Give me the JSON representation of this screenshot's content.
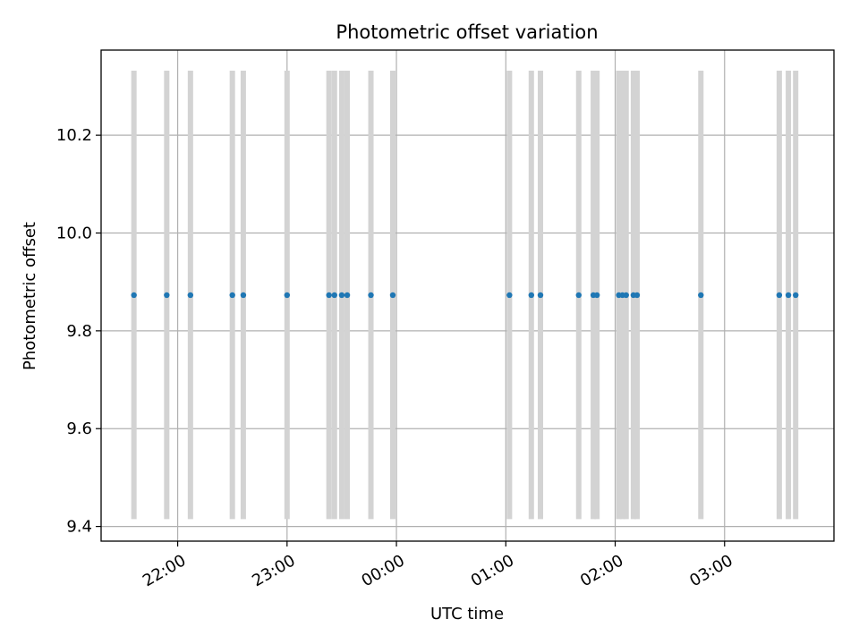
{
  "chart_data": {
    "type": "scatter",
    "title": "Photometric offset variation",
    "xlabel": "UTC time",
    "ylabel": "Photometric offset",
    "x_axis": {
      "type": "time",
      "range": [
        "21:18",
        "04:00"
      ],
      "tick_values": [
        "22:00",
        "23:00",
        "00:00",
        "01:00",
        "02:00",
        "03:00"
      ],
      "tick_labels": [
        "22:00",
        "23:00",
        "00:00",
        "01:00",
        "02:00",
        "03:00"
      ]
    },
    "y_axis": {
      "range": [
        9.37,
        10.374
      ],
      "tick_values": [
        9.4,
        9.6,
        9.8,
        10.0,
        10.2
      ],
      "tick_labels": [
        "9.4",
        "9.6",
        "9.8",
        "10.0",
        "10.2"
      ]
    },
    "grid": true,
    "series": [
      {
        "marker_color": "#1f77b4",
        "x": [
          "21:36",
          "21:54",
          "22:07",
          "22:30",
          "22:36",
          "23:00",
          "23:23",
          "23:26",
          "23:30",
          "23:33",
          "23:46",
          "23:58",
          "01:02",
          "01:14",
          "01:19",
          "01:40",
          "01:48",
          "01:50",
          "02:02",
          "02:04",
          "02:06",
          "02:10",
          "02:12",
          "02:47",
          "03:30",
          "03:35",
          "03:39"
        ],
        "y": [
          9.873,
          9.873,
          9.873,
          9.873,
          9.873,
          9.873,
          9.873,
          9.873,
          9.873,
          9.873,
          9.873,
          9.873,
          9.873,
          9.873,
          9.873,
          9.873,
          9.873,
          9.873,
          9.873,
          9.873,
          9.873,
          9.873,
          9.873,
          9.873,
          9.873,
          9.873,
          9.873
        ]
      }
    ],
    "vertical_bands": {
      "color": "#d3d3d3",
      "y_range": [
        9.415,
        10.332
      ],
      "x": [
        "21:36",
        "21:54",
        "22:07",
        "22:30",
        "22:36",
        "23:00",
        "23:23",
        "23:26",
        "23:30",
        "23:33",
        "23:46",
        "23:58",
        "01:02",
        "01:14",
        "01:19",
        "01:40",
        "01:48",
        "01:50",
        "02:02",
        "02:04",
        "02:06",
        "02:10",
        "02:12",
        "02:47",
        "03:30",
        "03:35",
        "03:39"
      ]
    }
  }
}
